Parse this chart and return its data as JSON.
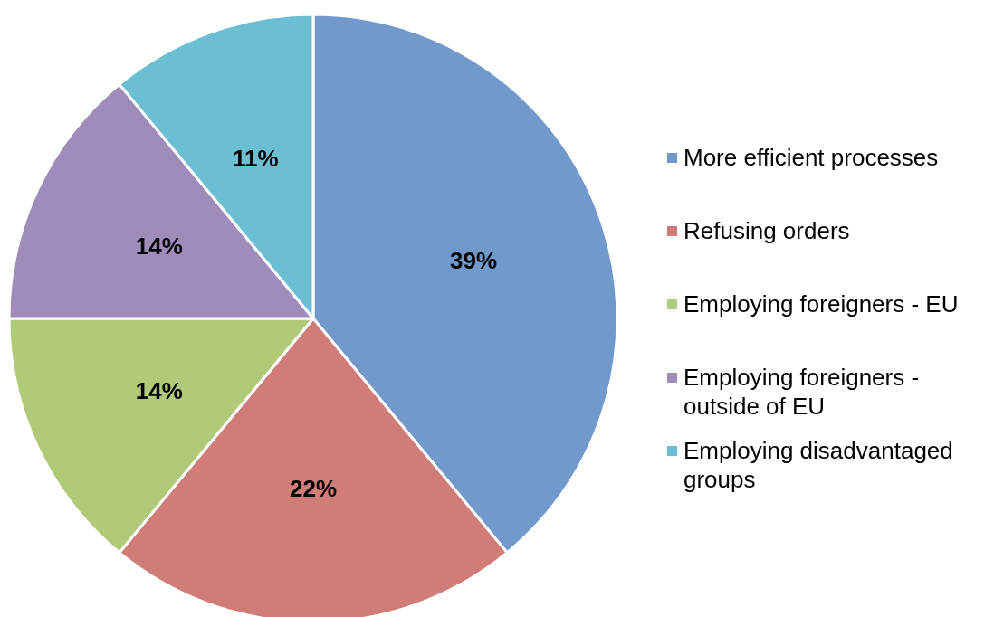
{
  "chart_data": {
    "type": "pie",
    "categories": [
      "More efficient processes",
      "Refusing orders",
      "Employing foreigners - EU",
      "Employing foreigners - outside of EU",
      "Employing disadvantaged groups"
    ],
    "values": [
      39,
      22,
      14,
      14,
      11
    ],
    "colors": [
      "#7199cb",
      "#d07c79",
      "#b0ca7a",
      "#a08cbb",
      "#6cbfd3"
    ],
    "value_labels": [
      "39%",
      "22%",
      "14%",
      "14%",
      "11%"
    ],
    "legend": "right"
  }
}
